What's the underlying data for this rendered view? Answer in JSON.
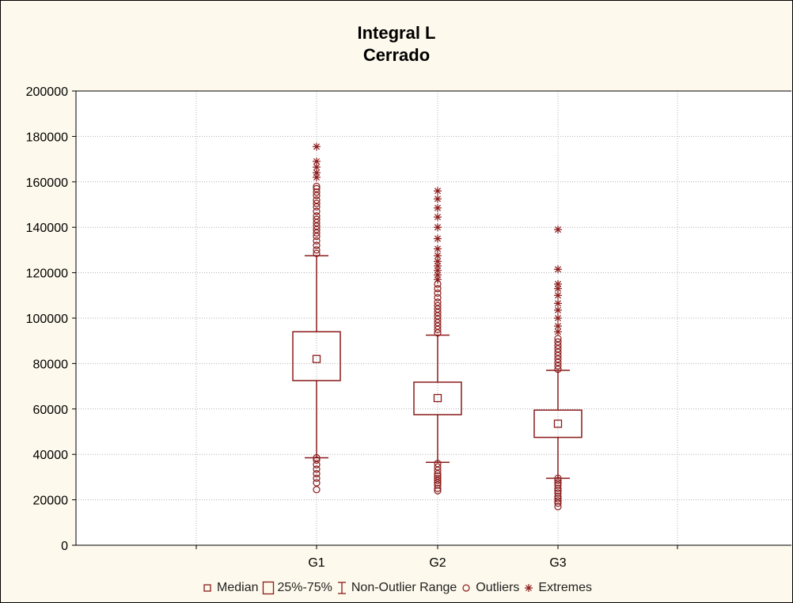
{
  "chart_data": {
    "type": "boxplot",
    "title": "Integral L",
    "subtitle": "Cerrado",
    "categories": [
      "G1",
      "G2",
      "G3"
    ],
    "ylim": [
      0,
      200000
    ],
    "yticks": [
      0,
      20000,
      40000,
      60000,
      80000,
      100000,
      120000,
      140000,
      160000,
      180000,
      200000
    ],
    "grid": true,
    "legend_position": "bottom",
    "series": [
      {
        "category": "G1",
        "median": 82000,
        "q1": 72500,
        "q3": 94000,
        "whisker_low": 38500,
        "whisker_high": 127500,
        "outliers": [
          24500,
          27500,
          29500,
          31500,
          33500,
          35500,
          37500,
          38500,
          128500,
          130000,
          132000,
          134000,
          136000,
          137500,
          139000,
          140500,
          142000,
          143500,
          145000,
          147000,
          149000,
          150500,
          152000,
          154000,
          155500,
          157000,
          158000
        ],
        "extremes": [
          162000,
          164000,
          166500,
          169000,
          175500
        ]
      },
      {
        "category": "G2",
        "median": 64800,
        "q1": 57500,
        "q3": 71800,
        "whisker_low": 36500,
        "whisker_high": 92500,
        "outliers": [
          24000,
          25000,
          26500,
          27500,
          28500,
          29500,
          30500,
          31500,
          33000,
          34500,
          36000,
          93500,
          95000,
          96500,
          98000,
          99500,
          101000,
          102500,
          104000,
          105500,
          107000,
          109000,
          111000,
          113000,
          115000
        ],
        "extremes": [
          117000,
          119000,
          121000,
          123000,
          125000,
          127500,
          130500,
          135000,
          140000,
          144500,
          148500,
          152500,
          156000
        ]
      },
      {
        "category": "G3",
        "median": 53500,
        "q1": 47500,
        "q3": 59500,
        "whisker_low": 29500,
        "whisker_high": 77000,
        "outliers": [
          17000,
          18500,
          19500,
          20500,
          21500,
          23000,
          24000,
          25000,
          26500,
          27500,
          28500,
          29500,
          77500,
          79000,
          80500,
          82000,
          83500,
          85000,
          86500,
          88000,
          89500,
          91000
        ],
        "extremes": [
          94000,
          96500,
          100000,
          103500,
          106500,
          110000,
          113000,
          115000,
          121500,
          139000
        ]
      }
    ],
    "legend": [
      {
        "symbol": "median",
        "label": "Median"
      },
      {
        "symbol": "box",
        "label": "25%-75%"
      },
      {
        "symbol": "whisker",
        "label": "Non-Outlier Range"
      },
      {
        "symbol": "outlier",
        "label": "Outliers"
      },
      {
        "symbol": "extreme",
        "label": "Extremes"
      }
    ],
    "colors": {
      "series": "#8b1a1a",
      "background": "#fdf9ec",
      "plot_area": "#ffffff",
      "grid": "#b0b0b0"
    }
  }
}
